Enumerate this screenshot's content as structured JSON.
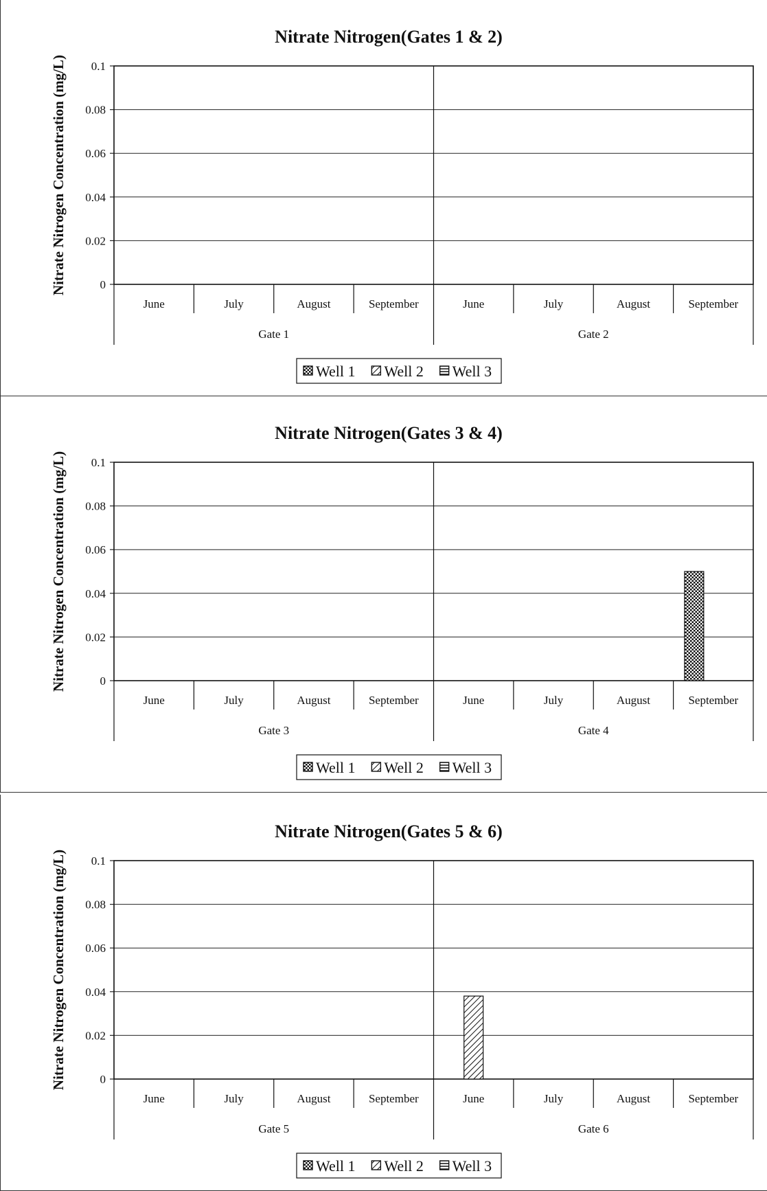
{
  "chart_data": [
    {
      "type": "bar",
      "title": "Nitrate Nitrogen(Gates 1 & 2)",
      "ylabel": "Nitrate Nitrogen Concentration (mg/L)",
      "xlabel": "",
      "ylim": [
        0,
        0.1
      ],
      "yticks": [
        "0",
        "0.02",
        "0.04",
        "0.06",
        "0.08",
        "0.1"
      ],
      "groups": [
        "Gate 1",
        "Gate 2"
      ],
      "categories": [
        "June",
        "July",
        "August",
        "September"
      ],
      "series": [
        {
          "name": "Well 1",
          "pattern": "dots",
          "values": [
            [
              0,
              0,
              0,
              0
            ],
            [
              0,
              0,
              0,
              0
            ]
          ]
        },
        {
          "name": "Well 2",
          "pattern": "diagonal",
          "values": [
            [
              0,
              0,
              0,
              0
            ],
            [
              0,
              0,
              0,
              0
            ]
          ]
        },
        {
          "name": "Well 3",
          "pattern": "horizontal",
          "values": [
            [
              0,
              0,
              0,
              0
            ],
            [
              0,
              0,
              0,
              0
            ]
          ]
        }
      ],
      "grid": true,
      "legend": "bottom"
    },
    {
      "type": "bar",
      "title": "Nitrate Nitrogen(Gates 3 & 4)",
      "ylabel": "Nitrate Nitrogen Concentration (mg/L)",
      "xlabel": "",
      "ylim": [
        0,
        0.1
      ],
      "yticks": [
        "0",
        "0.02",
        "0.04",
        "0.06",
        "0.08",
        "0.1"
      ],
      "groups": [
        "Gate 3",
        "Gate 4"
      ],
      "categories": [
        "June",
        "July",
        "August",
        "September"
      ],
      "series": [
        {
          "name": "Well 1",
          "pattern": "dots",
          "values": [
            [
              0,
              0,
              0,
              0
            ],
            [
              0,
              0,
              0,
              0.05
            ]
          ]
        },
        {
          "name": "Well 2",
          "pattern": "diagonal",
          "values": [
            [
              0,
              0,
              0,
              0
            ],
            [
              0,
              0,
              0,
              0
            ]
          ]
        },
        {
          "name": "Well 3",
          "pattern": "horizontal",
          "values": [
            [
              0,
              0,
              0,
              0
            ],
            [
              0,
              0,
              0,
              0
            ]
          ]
        }
      ],
      "grid": true,
      "legend": "bottom"
    },
    {
      "type": "bar",
      "title": "Nitrate Nitrogen(Gates 5 & 6)",
      "ylabel": "Nitrate Nitrogen Concentration (mg/L)",
      "xlabel": "",
      "ylim": [
        0,
        0.1
      ],
      "yticks": [
        "0",
        "0.02",
        "0.04",
        "0.06",
        "0.08",
        "0.1"
      ],
      "groups": [
        "Gate 5",
        "Gate 6"
      ],
      "categories": [
        "June",
        "July",
        "August",
        "September"
      ],
      "series": [
        {
          "name": "Well 1",
          "pattern": "dots",
          "values": [
            [
              0,
              0,
              0,
              0
            ],
            [
              0,
              0,
              0,
              0
            ]
          ]
        },
        {
          "name": "Well 2",
          "pattern": "diagonal",
          "values": [
            [
              0,
              0,
              0,
              0
            ],
            [
              0.038,
              0,
              0,
              0
            ]
          ]
        },
        {
          "name": "Well 3",
          "pattern": "horizontal",
          "values": [
            [
              0,
              0,
              0,
              0
            ],
            [
              0,
              0,
              0,
              0
            ]
          ]
        }
      ],
      "grid": true,
      "legend": "bottom"
    }
  ]
}
